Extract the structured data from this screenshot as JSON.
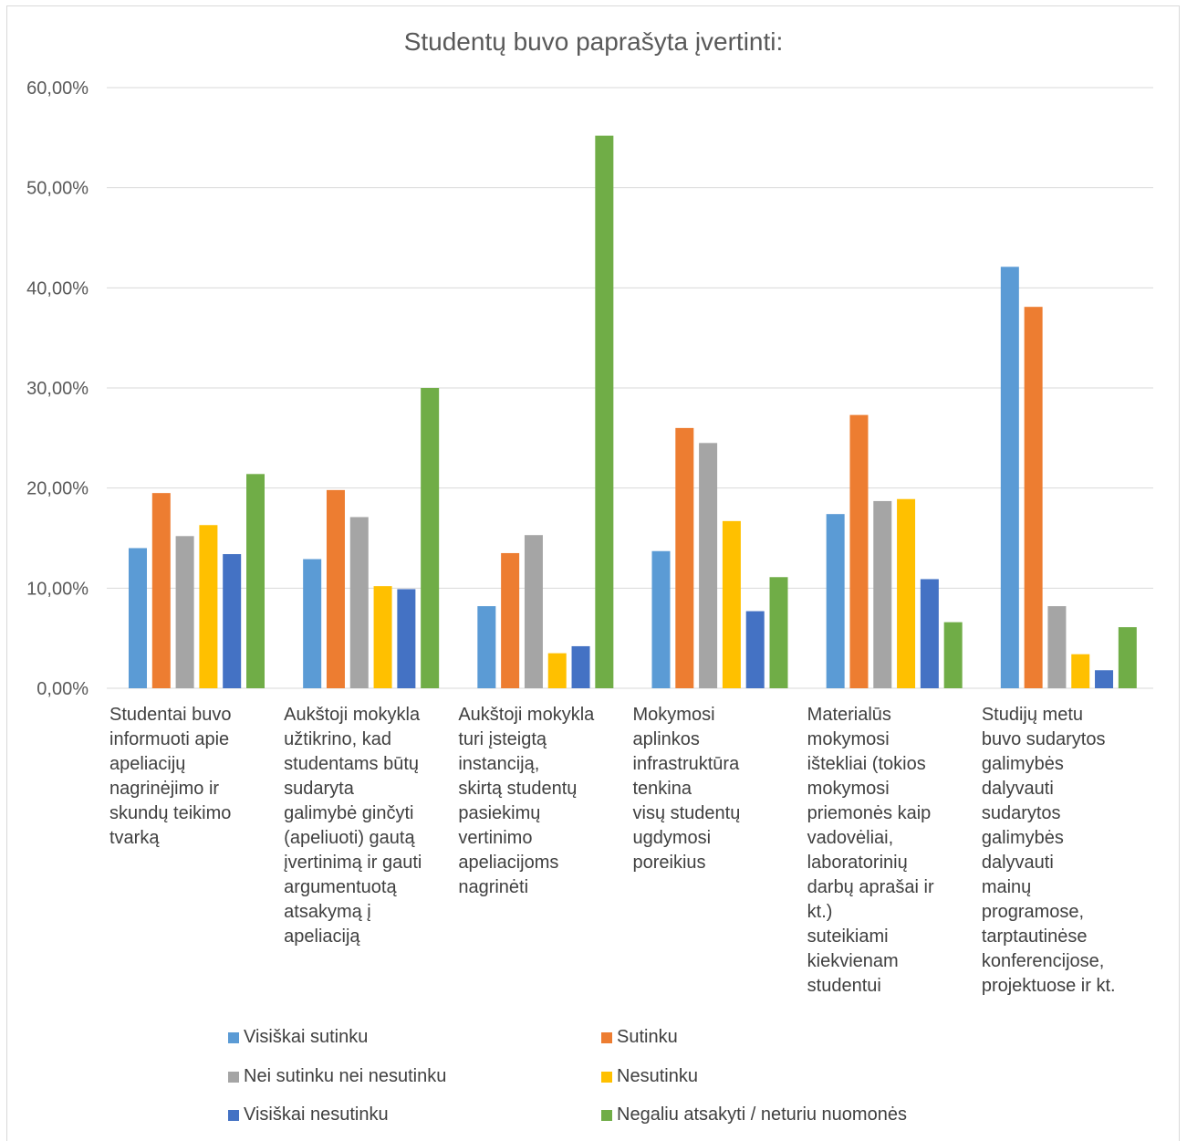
{
  "chart_data": {
    "type": "bar",
    "title": "Studentų buvo paprašyta įvertinti:",
    "ylim": [
      0,
      60
    ],
    "yticks": [
      "0,00%",
      "10,00%",
      "20,00%",
      "30,00%",
      "40,00%",
      "50,00%",
      "60,00%"
    ],
    "grid": true,
    "legend_position": "bottom",
    "categories": [
      "Studentai buvo informuoti apie apeliacijų nagrinėjimo ir skundų teikimo tvarką",
      "Aukštoji mokykla užtikrino, kad studentams būtų sudaryta galimybė ginčyti (apeliuoti) gautą įvertinimą ir gauti argumentuotą atsakymą į apeliaciją",
      "Aukštoji mokykla turi įsteigtą instanciją, skirtą studentų pasiekimų vertinimo apeliacijoms nagrinėti",
      "Mokymosi aplinkos infrastruktūra tenkina visų studentų ugdymosi poreikius",
      "Materialūs mokymosi ištekliai (tokios mokymosi priemonės kaip vadovėliai, laboratorinių darbų aprašai ir kt.) suteikiami kiekvienam studentui",
      "Studijų metu buvo sudarytos galimybės dalyvauti sudarytos galimybės dalyvauti mainų programose, tarptautinėse konferencijose, projektuose ir kt."
    ],
    "category_lines": [
      [
        "Studentai buvo",
        "informuoti apie",
        "apeliacijų",
        "nagrinėjimo ir",
        "skundų teikimo",
        "tvarką"
      ],
      [
        "Aukštoji mokykla",
        "užtikrino, kad",
        "studentams būtų",
        "sudaryta",
        "galimybė ginčyti",
        "(apeliuoti) gautą",
        "įvertinimą ir gauti",
        "argumentuotą",
        "atsakymą į",
        "apeliaciją"
      ],
      [
        "Aukštoji mokykla",
        "turi įsteigtą",
        "instanciją,",
        "skirtą studentų",
        "pasiekimų",
        "vertinimo",
        "apeliacijoms",
        "nagrinėti"
      ],
      [
        "Mokymosi",
        "aplinkos",
        "infrastruktūra",
        "tenkina",
        "visų studentų",
        "ugdymosi",
        "poreikius"
      ],
      [
        "Materialūs",
        "mokymosi",
        "ištekliai (tokios",
        "mokymosi",
        "priemonės kaip",
        "vadovėliai,",
        "laboratorinių",
        "darbų aprašai ir",
        "kt.)",
        "suteikiami",
        "kiekvienam",
        "studentui"
      ],
      [
        "Studijų metu",
        "buvo sudarytos",
        "galimybės",
        "dalyvauti",
        "sudarytos",
        "galimybės",
        "dalyvauti",
        "mainų",
        "programose,",
        "tarptautinėse",
        "konferencijose,",
        "projektuose ir kt."
      ]
    ],
    "series": [
      {
        "name": "Visiškai sutinku",
        "color": "#5b9bd5",
        "values": [
          14.0,
          12.9,
          8.2,
          13.7,
          17.4,
          42.1
        ]
      },
      {
        "name": "Sutinku",
        "color": "#ed7d31",
        "values": [
          19.5,
          19.8,
          13.5,
          26.0,
          27.3,
          38.1
        ]
      },
      {
        "name": "Nei sutinku nei nesutinku",
        "color": "#a5a5a5",
        "values": [
          15.2,
          17.1,
          15.3,
          24.5,
          18.7,
          8.2
        ]
      },
      {
        "name": "Nesutinku",
        "color": "#ffc000",
        "values": [
          16.3,
          10.2,
          3.5,
          16.7,
          18.9,
          3.4
        ]
      },
      {
        "name": "Visiškai nesutinku",
        "color": "#4472c4",
        "values": [
          13.4,
          9.9,
          4.2,
          7.7,
          10.9,
          1.8
        ]
      },
      {
        "name": "Negaliu atsakyti / neturiu nuomonės",
        "color": "#70ad47",
        "values": [
          21.4,
          30.0,
          55.2,
          11.1,
          6.6,
          6.1
        ]
      }
    ]
  }
}
